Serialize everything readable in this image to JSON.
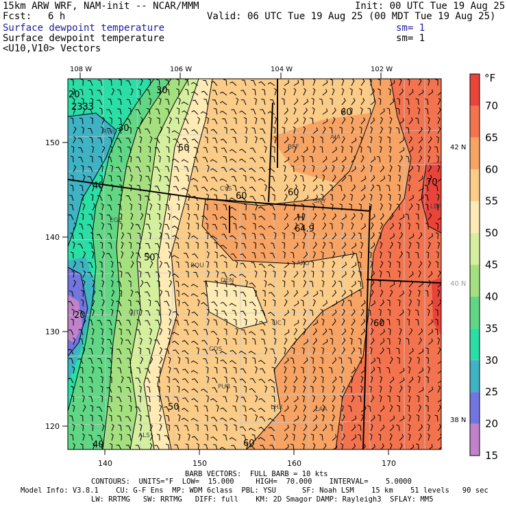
{
  "header": {
    "model_title": "15km ARW WRF, NAM-init -- NCAR/MMM",
    "init_time": "Init: 00 UTC Tue 19 Aug 25",
    "forecast_label": "Fcst:",
    "forecast_hours": "6 h",
    "valid_time": "Valid: 06 UTC Tue 19 Aug 25 (00 MDT Tue 19 Aug 25)",
    "field1_name": "Surface dewpoint temperature",
    "field1_smoothing": "sm= 1",
    "field2_name": "Surface dewpoint temperature",
    "field2_smoothing": "sm= 1",
    "field3_name": "<U10,V10> Vectors"
  },
  "colorbar": {
    "unit": "°F",
    "labels": [
      "70",
      "65",
      "60",
      "55",
      "50",
      "45",
      "40",
      "35",
      "30",
      "25",
      "20",
      "15"
    ],
    "colors": [
      "#e8443a",
      "#f3734f",
      "#f6a364",
      "#fbcb88",
      "#fdeab5",
      "#d6ef9f",
      "#a4e07f",
      "#61d785",
      "#2bdea6",
      "#3fb2c4",
      "#7275de",
      "#c083c9"
    ]
  },
  "map": {
    "top_lon_labels": [
      "108 W",
      "106 W",
      "104 W",
      "102 W"
    ],
    "bottom_x_labels": [
      "140",
      "150",
      "160",
      "170"
    ],
    "left_y_labels": [
      "150",
      "140",
      "130",
      "120"
    ],
    "right_lat_labels": [
      "42 N",
      "40 N",
      "38 N"
    ],
    "station_labels": [
      "RWL",
      "CYS",
      "BFF",
      "AIA",
      "SNY",
      "LBF",
      "EGE",
      "BOU",
      "DEN",
      "AKO",
      "LIC",
      "COS",
      "LAA",
      "PUB",
      "LHX",
      "ALS",
      "GJT"
    ],
    "contour_labels": [
      "30",
      "30",
      "50",
      "60",
      "60",
      "70",
      "40",
      "50",
      "60",
      "20",
      "40",
      "50",
      "60",
      "60",
      "20"
    ],
    "high_marker": "H",
    "high_value": "64.9",
    "corner_label": "2333"
  },
  "footer": {
    "barb_line": "BARB VECTORS:  FULL BARB = 10 kts",
    "contours_line": "CONTOURS:  UNITS=°F  LOW=  15.000     HIGH=  70.000    INTERVAL=    5.0000",
    "model_info_line1": "Model Info: V3.8.1    CU: G-F Ens  MP: WDM 6class  PBL: YSU      SF: Noah LSM    15 km    51 levels   90 sec",
    "model_info_line2": "LW: RRTMG   SW: RRTMG   DIFF: full    KM: 2D Smagor DAMP: Rayleigh3  SFLAY: MM5"
  }
}
